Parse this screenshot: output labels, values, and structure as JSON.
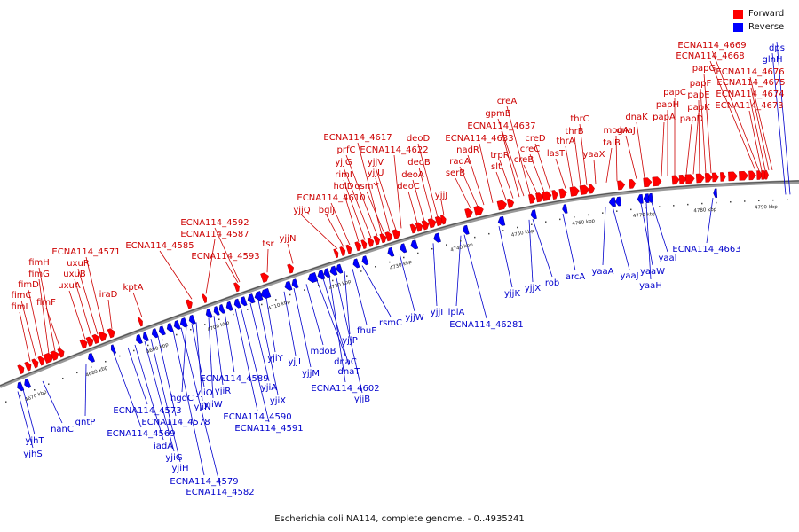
{
  "legend": {
    "forward": {
      "label": "Forward",
      "color": "#ff0000"
    },
    "reverse": {
      "label": "Reverse",
      "color": "#0000ff"
    }
  },
  "caption": "Escherichia coli NA114, complete genome. - 0..4935241",
  "colors": {
    "forward_label": "#cc0000",
    "reverse_label": "#0000cc",
    "axis": "#888888"
  },
  "axis": {
    "ticks": [
      "4670 kbp",
      "4680 kbp",
      "4690 kbp",
      "4700 kbp",
      "4710 kbp",
      "4720 kbp",
      "4730 kbp",
      "4740 kbp",
      "4750 kbp",
      "4760 kbp",
      "4770 kbp",
      "4780 kbp",
      "4790 kbp"
    ]
  },
  "forward_labels": [
    "fimI",
    "fimC",
    "fimD",
    "fimG",
    "fimH",
    "fimF",
    "uxuA",
    "uxuB",
    "uxuR",
    "ECNA114_4571",
    "iraD",
    "kptA",
    "ECNA114_4585",
    "ECNA114_4587",
    "ECNA114_4592",
    "ECNA114_4593",
    "tsr",
    "yjjN",
    "yjjQ",
    "bglJ",
    "ECNA114_4610",
    "holD",
    "rimI",
    "yjjG",
    "prfC",
    "ECNA114_4617",
    "osmY",
    "yjjU",
    "yjjV",
    "ECNA114_4622",
    "deoC",
    "deoA",
    "deoB",
    "deoD",
    "yjjJ",
    "serB",
    "radA",
    "nadR",
    "ECNA114_4633",
    "slt",
    "trpR",
    "ECNA114_4637",
    "gpmB",
    "creA",
    "creB",
    "creC",
    "creD",
    "lasT",
    "thrA",
    "thrB",
    "thrC",
    "yaaX",
    "talB",
    "mogA",
    "dnaJ",
    "dnaK",
    "papA",
    "papH",
    "papC",
    "papD",
    "papK",
    "papE",
    "papF",
    "papG",
    "ECNA114_4668",
    "ECNA114_4669",
    "ECNA114_4673",
    "ECNA114_4674",
    "ECNA114_4675",
    "ECNA114_4676"
  ],
  "reverse_labels": [
    "yjhS",
    "yjhT",
    "nanC",
    "gntP",
    "ECNA114_4569",
    "ECNA114_4573",
    "iadA",
    "yjiG",
    "yjiH",
    "ECNA114_4578",
    "ECNA114_4579",
    "ECNA114_4582",
    "hgdC",
    "yjiO",
    "yjiN",
    "yjiW",
    "yjiR",
    "ECNA114_4589",
    "ECNA114_4590",
    "ECNA114_4591",
    "yjiA",
    "yjiX",
    "yjiY",
    "yjjL",
    "yjjM",
    "mdoB",
    "dnaC",
    "dnaT",
    "ECNA114_4602",
    "yjjB",
    "yjjP",
    "fhuF",
    "rsmC",
    "yjjW",
    "yjjI",
    "lplA",
    "ECNA114_46281",
    "yjjK",
    "yjjX",
    "rob",
    "arcA",
    "yaaA",
    "yaaJ",
    "yaaW",
    "yaaH",
    "yaaI",
    "ECNA114_4663",
    "glnH",
    "dps"
  ]
}
